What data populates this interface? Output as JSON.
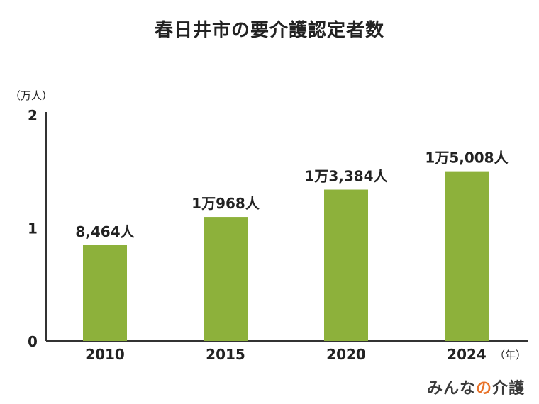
{
  "chart_data": {
    "type": "bar",
    "title": "春日井市の要介護認定者数",
    "y_unit_label": "（万人）",
    "x_unit_label": "（年）",
    "categories": [
      "2010",
      "2015",
      "2020",
      "2024"
    ],
    "values": [
      8464,
      10968,
      13384,
      15008
    ],
    "data_labels": [
      "8,464人",
      "1万968人",
      "1万3,384人",
      "1万5,008人"
    ],
    "ylim": [
      0,
      20000
    ],
    "y_ticks": [
      {
        "value": 0,
        "label": "0"
      },
      {
        "value": 10000,
        "label": "1"
      },
      {
        "value": 20000,
        "label": "2"
      }
    ],
    "bar_color": "#8db13b",
    "grid": false
  },
  "logo": {
    "prefix": "みんな",
    "accent": "の",
    "suffix": "介護",
    "accent_color": "#e8732a"
  }
}
